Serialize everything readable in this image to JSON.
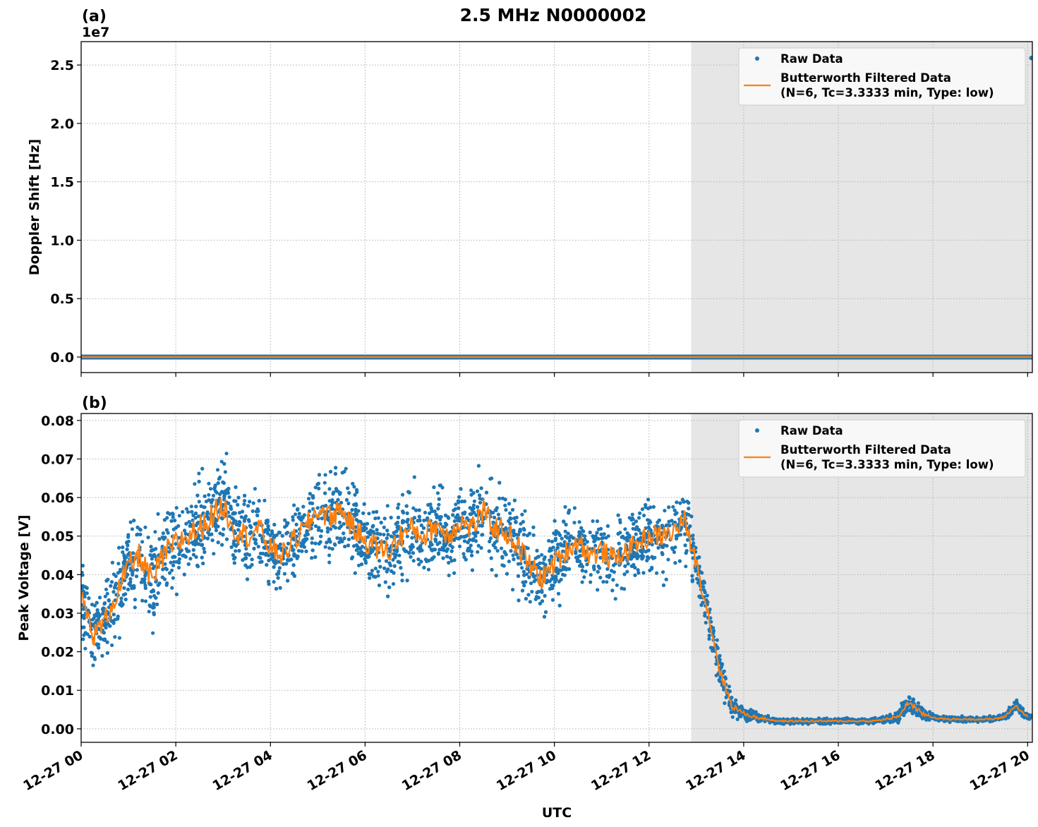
{
  "chart_data": [
    {
      "panel_label": "(a)",
      "type": "scatter",
      "title": "2.5 MHz N0000002",
      "xlabel": "",
      "ylabel": "Doppler Shift [Hz]",
      "y_offset_label": "1e7",
      "xlim_hours": [
        0,
        20.1
      ],
      "ylim": [
        -1330000,
        27000000
      ],
      "yticks": [
        0,
        5000000,
        10000000,
        15000000,
        20000000,
        25000000
      ],
      "ytick_labels": [
        "0.0",
        "0.5",
        "1.0",
        "1.5",
        "2.0",
        "2.5"
      ],
      "grid": true,
      "shaded_region_hours": [
        12.89,
        20.1
      ],
      "legend": {
        "placement": "top-right",
        "entries": [
          "Raw Data",
          "Butterworth Filtered Data",
          "(N=6, Tc=3.3333 min, Type: low)"
        ]
      },
      "series": [
        {
          "name": "Raw Data",
          "note_values": "approximately 0 throughout",
          "value": 0,
          "outlier": {
            "x_hours": 20.08,
            "y": 25600000
          }
        },
        {
          "name": "Butterworth Filtered Data",
          "value": 0
        }
      ]
    },
    {
      "panel_label": "(b)",
      "type": "scatter",
      "xlabel": "UTC",
      "ylabel": "Peak Voltage [V]",
      "xlim_hours": [
        0,
        20.1
      ],
      "ylim": [
        -0.0035,
        0.0818
      ],
      "yticks": [
        0,
        0.01,
        0.02,
        0.03,
        0.04,
        0.05,
        0.06,
        0.07,
        0.08
      ],
      "ytick_labels": [
        "0.00",
        "0.01",
        "0.02",
        "0.03",
        "0.04",
        "0.05",
        "0.06",
        "0.07",
        "0.08"
      ],
      "xticks_hours": [
        0,
        2,
        4,
        6,
        8,
        10,
        12,
        14,
        16,
        18,
        20
      ],
      "xtick_labels": [
        "12-27 00",
        "12-27 02",
        "12-27 04",
        "12-27 06",
        "12-27 08",
        "12-27 10",
        "12-27 12",
        "12-27 14",
        "12-27 16",
        "12-27 18",
        "12-27 20"
      ],
      "grid": true,
      "shaded_region_hours": [
        12.89,
        20.1
      ],
      "legend": {
        "placement": "top-right",
        "entries": [
          "Raw Data",
          "Butterworth Filtered Data",
          "(N=6, Tc=3.3333 min, Type: low)"
        ]
      },
      "x_step_hours": 0.25,
      "series": [
        {
          "name": "Butterworth Filtered Data",
          "values": [
            0.035,
            0.024,
            0.028,
            0.035,
            0.042,
            0.045,
            0.038,
            0.045,
            0.048,
            0.05,
            0.052,
            0.055,
            0.058,
            0.052,
            0.05,
            0.052,
            0.047,
            0.045,
            0.049,
            0.052,
            0.057,
            0.055,
            0.057,
            0.052,
            0.049,
            0.047,
            0.046,
            0.05,
            0.052,
            0.05,
            0.053,
            0.05,
            0.054,
            0.052,
            0.056,
            0.052,
            0.051,
            0.047,
            0.042,
            0.039,
            0.043,
            0.046,
            0.049,
            0.045,
            0.046,
            0.044,
            0.046,
            0.048,
            0.05,
            0.05,
            0.051,
            0.054,
            0.043,
            0.03,
            0.015,
            0.006,
            0.004,
            0.003,
            0.0025,
            0.002,
            0.002,
            0.002,
            0.002,
            0.002,
            0.002,
            0.002,
            0.002,
            0.002,
            0.0025,
            0.003,
            0.007,
            0.004,
            0.003,
            0.0025,
            0.0025,
            0.0025,
            0.0025,
            0.0025,
            0.003,
            0.006,
            0.003
          ]
        },
        {
          "name": "Raw Data",
          "spread": [
            0.012,
            0.01,
            0.011,
            0.012,
            0.012,
            0.013,
            0.013,
            0.013,
            0.013,
            0.013,
            0.013,
            0.013,
            0.013,
            0.013,
            0.012,
            0.012,
            0.011,
            0.011,
            0.012,
            0.012,
            0.012,
            0.012,
            0.012,
            0.012,
            0.012,
            0.012,
            0.012,
            0.012,
            0.012,
            0.012,
            0.012,
            0.012,
            0.012,
            0.012,
            0.012,
            0.012,
            0.012,
            0.012,
            0.012,
            0.011,
            0.011,
            0.011,
            0.011,
            0.011,
            0.011,
            0.011,
            0.01,
            0.01,
            0.01,
            0.01,
            0.01,
            0.01,
            0.008,
            0.007,
            0.006,
            0.003,
            0.002,
            0.0015,
            0.001,
            0.0008,
            0.0008,
            0.0008,
            0.0008,
            0.001,
            0.0008,
            0.0008,
            0.0008,
            0.0008,
            0.001,
            0.0015,
            0.003,
            0.002,
            0.001,
            0.0008,
            0.0008,
            0.0008,
            0.0008,
            0.0008,
            0.001,
            0.0015,
            0.001
          ]
        }
      ]
    }
  ]
}
